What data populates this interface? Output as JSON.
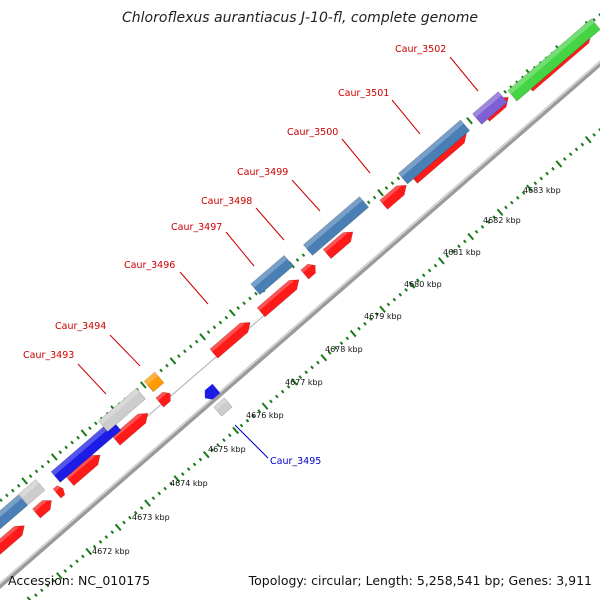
{
  "title": "Chloroflexus aurantiacus J-10-fl, complete genome",
  "footer": {
    "accession": "Accession: NC_010175",
    "summary": "Topology: circular; Length: 5,258,541 bp; Genes: 3,911"
  },
  "colors": {
    "forward_cds": "#ff1a1a",
    "strand_line": "#a0a0a0",
    "tick": "#1a7a1a",
    "label_forward": "#cc0000",
    "label_reverse": "#0000cc",
    "gene_blue": "#1c1ce6",
    "gene_steelblue": "#4a7fb5",
    "gene_gray": "#cccccc",
    "gene_orange": "#ff9900",
    "gene_green": "#44d444",
    "gene_purple": "#7f5fd4"
  },
  "gene_labels": [
    {
      "name": "Caur_3493",
      "strand": "forward"
    },
    {
      "name": "Caur_3494",
      "strand": "forward"
    },
    {
      "name": "Caur_3495",
      "strand": "reverse"
    },
    {
      "name": "Caur_3496",
      "strand": "forward"
    },
    {
      "name": "Caur_3497",
      "strand": "forward"
    },
    {
      "name": "Caur_3498",
      "strand": "forward"
    },
    {
      "name": "Caur_3499",
      "strand": "forward"
    },
    {
      "name": "Caur_3500",
      "strand": "forward"
    },
    {
      "name": "Caur_3501",
      "strand": "forward"
    },
    {
      "name": "Caur_3502",
      "strand": "forward"
    }
  ],
  "kbp_ticks": [
    "4672 kbp",
    "4673 kbp",
    "4674 kbp",
    "4675 kbp",
    "4676 kbp",
    "4677 kbp",
    "4678 kbp",
    "4679 kbp",
    "4680 kbp",
    "4681 kbp",
    "4682 kbp",
    "4683 kbp"
  ]
}
